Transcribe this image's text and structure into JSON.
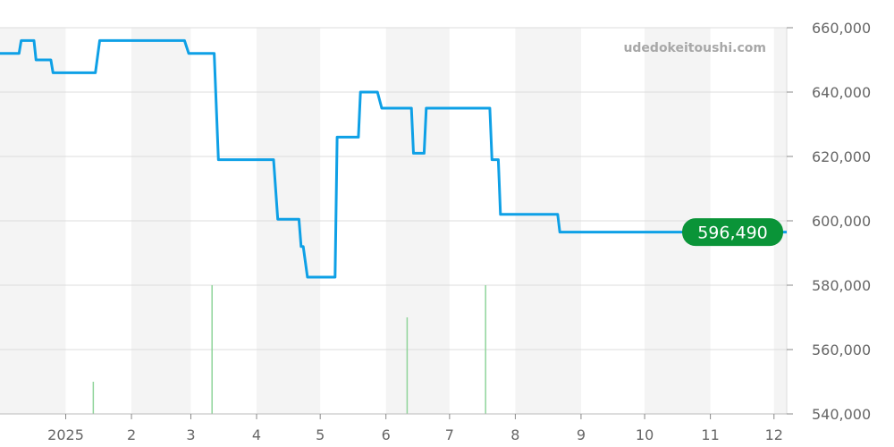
{
  "watermark": "udedokeitoushi.com",
  "chart_data": {
    "type": "line",
    "title": "",
    "xlabel": "",
    "ylabel": "",
    "ylim": [
      540000,
      660000
    ],
    "xlim": [
      "2024-12-01",
      "2025-12-07"
    ],
    "grid": true,
    "y_ticks": [
      {
        "value": 540000,
        "label": "540,000"
      },
      {
        "value": 560000,
        "label": "560,000"
      },
      {
        "value": 580000,
        "label": "580,000"
      },
      {
        "value": 600000,
        "label": "600,000"
      },
      {
        "value": 620000,
        "label": "620,000"
      },
      {
        "value": 640000,
        "label": "640,000"
      },
      {
        "value": 660000,
        "label": "660,000"
      }
    ],
    "x_ticks": [
      {
        "date": "2025-01-01",
        "label": "2025"
      },
      {
        "date": "2025-02-01",
        "label": "2"
      },
      {
        "date": "2025-03-01",
        "label": "3"
      },
      {
        "date": "2025-04-01",
        "label": "4"
      },
      {
        "date": "2025-05-01",
        "label": "5"
      },
      {
        "date": "2025-06-01",
        "label": "6"
      },
      {
        "date": "2025-07-01",
        "label": "7"
      },
      {
        "date": "2025-08-01",
        "label": "8"
      },
      {
        "date": "2025-09-01",
        "label": "9"
      },
      {
        "date": "2025-10-01",
        "label": "10"
      },
      {
        "date": "2025-11-01",
        "label": "11"
      },
      {
        "date": "2025-12-01",
        "label": "12"
      }
    ],
    "line_color": "#0ea0e6",
    "volume_color": "#8fd49a",
    "last_value_color": "#0a9438",
    "last_value_label": "596,490",
    "series": [
      {
        "points": [
          [
            "2024-12-01",
            652000
          ],
          [
            "2024-12-10",
            652000
          ],
          [
            "2024-12-11",
            656000
          ],
          [
            "2024-12-17",
            656000
          ],
          [
            "2024-12-18",
            650000
          ],
          [
            "2024-12-25",
            650000
          ],
          [
            "2024-12-26",
            646000
          ],
          [
            "2025-01-15",
            646000
          ],
          [
            "2025-01-17",
            656000
          ],
          [
            "2025-02-26",
            656000
          ],
          [
            "2025-02-28",
            652000
          ],
          [
            "2025-03-12",
            652000
          ],
          [
            "2025-03-14",
            619000
          ],
          [
            "2025-04-09",
            619000
          ],
          [
            "2025-04-11",
            600500
          ],
          [
            "2025-04-21",
            600500
          ],
          [
            "2025-04-22",
            592000
          ],
          [
            "2025-04-23",
            592000
          ],
          [
            "2025-04-25",
            582500
          ],
          [
            "2025-05-08",
            582500
          ],
          [
            "2025-05-09",
            626000
          ],
          [
            "2025-05-19",
            626000
          ],
          [
            "2025-05-20",
            640000
          ],
          [
            "2025-05-28",
            640000
          ],
          [
            "2025-05-30",
            635000
          ],
          [
            "2025-06-13",
            635000
          ],
          [
            "2025-06-14",
            621000
          ],
          [
            "2025-06-19",
            621000
          ],
          [
            "2025-06-20",
            635000
          ],
          [
            "2025-07-20",
            635000
          ],
          [
            "2025-07-21",
            619000
          ],
          [
            "2025-07-24",
            619000
          ],
          [
            "2025-07-25",
            602000
          ],
          [
            "2025-08-21",
            602000
          ],
          [
            "2025-08-22",
            596490
          ],
          [
            "2025-12-07",
            596490
          ]
        ]
      }
    ],
    "volume": [
      {
        "date": "2025-01-14",
        "value": 1
      },
      {
        "date": "2025-03-11",
        "value": 4
      },
      {
        "date": "2025-06-11",
        "value": 3
      },
      {
        "date": "2025-07-18",
        "value": 4
      }
    ]
  }
}
